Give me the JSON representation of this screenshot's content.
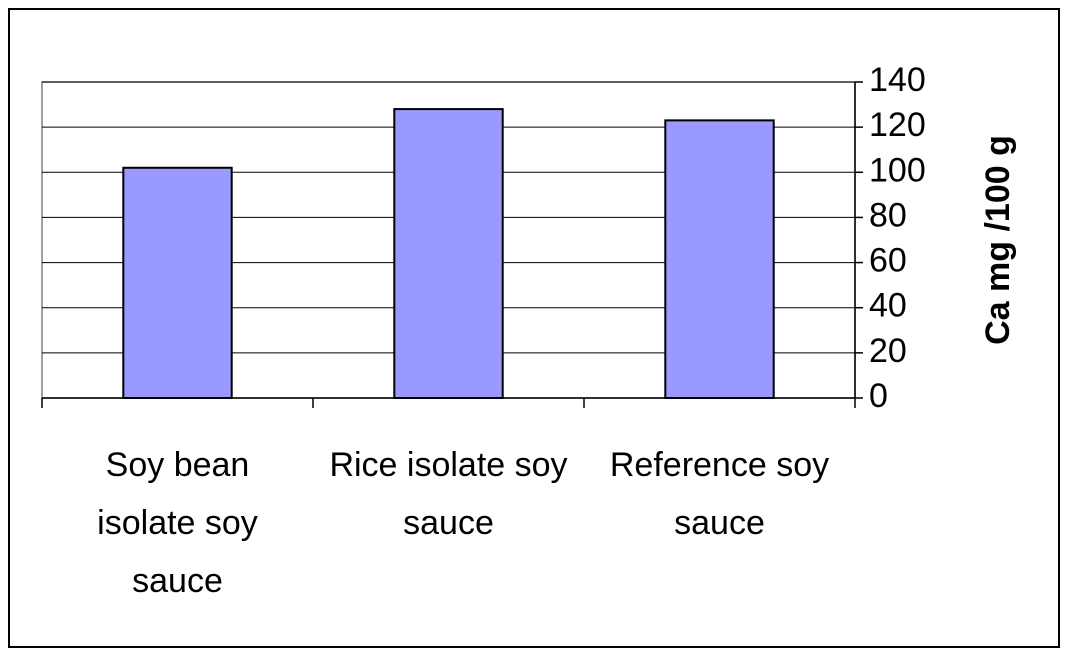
{
  "chart_data": {
    "type": "bar",
    "categories": [
      "Soy bean isolate soy sauce",
      "Rice isolate soy sauce",
      "Reference soy sauce"
    ],
    "values": [
      102,
      128,
      123
    ],
    "color": "#9999ff",
    "y_label": "Ca mg /100 g",
    "ylim": [
      0,
      140
    ],
    "yticks": [
      0,
      20,
      40,
      60,
      80,
      100,
      120,
      140
    ],
    "grid": true
  }
}
